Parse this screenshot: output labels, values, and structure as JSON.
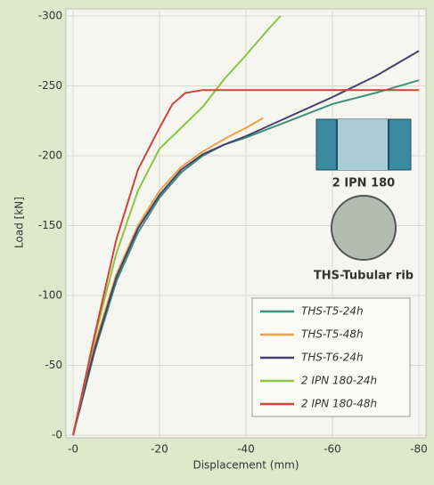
{
  "chart_data": {
    "type": "line",
    "xlabel": "Displacement (mm)",
    "ylabel": "Load [kN]",
    "xlim": [
      0,
      -80
    ],
    "xticks": [
      {
        "value": 0,
        "label": "-0"
      },
      -20,
      -40,
      -60,
      -80
    ],
    "ylim": [
      0,
      -300
    ],
    "yticks": [
      {
        "value": 0,
        "label": "-0"
      },
      -50,
      -100,
      -150,
      -200,
      -250,
      -300
    ],
    "grid": true,
    "legend": "lower right",
    "annotations": [
      "2 IPN 180",
      "THS-Tubular rib"
    ],
    "series": [
      {
        "name": "THS-T5-24h",
        "color": "#3f8f7c",
        "x": [
          0,
          -5,
          -10,
          -15,
          -20,
          -25,
          -30,
          -35,
          -40,
          -50,
          -60,
          -70,
          -80
        ],
        "values": [
          0,
          -60,
          -110,
          -145,
          -170,
          -188,
          -200,
          -208,
          -213,
          -225,
          -237,
          -245,
          -254
        ]
      },
      {
        "name": "THS-T5-48h",
        "color": "#f0a040",
        "x": [
          0,
          -5,
          -10,
          -15,
          -20,
          -25,
          -30,
          -35,
          -40,
          -44
        ],
        "values": [
          0,
          -65,
          -115,
          -150,
          -175,
          -192,
          -203,
          -212,
          -220,
          -227
        ]
      },
      {
        "name": "THS-T6-24h",
        "color": "#45406e",
        "x": [
          0,
          -5,
          -10,
          -15,
          -20,
          -25,
          -30,
          -35,
          -40,
          -50,
          -60,
          -70,
          -80
        ],
        "values": [
          0,
          -62,
          -113,
          -148,
          -172,
          -190,
          -201,
          -208,
          -214,
          -228,
          -242,
          -257,
          -275
        ]
      },
      {
        "name": "2 IPN 180-24h",
        "color": "#8cc63f",
        "x": [
          0,
          -5,
          -10,
          -15,
          -20,
          -25,
          -30,
          -35,
          -40,
          -45,
          -48
        ],
        "values": [
          0,
          -70,
          -130,
          -175,
          -205,
          -220,
          -235,
          -255,
          -272,
          -290,
          -300
        ]
      },
      {
        "name": "2 IPN 180-48h",
        "color": "#d2413a",
        "x": [
          0,
          -5,
          -10,
          -15,
          -20,
          -23,
          -26,
          -30,
          -80
        ],
        "values": [
          0,
          -72,
          -140,
          -190,
          -220,
          -237,
          -245,
          -247,
          -247
        ]
      }
    ]
  }
}
